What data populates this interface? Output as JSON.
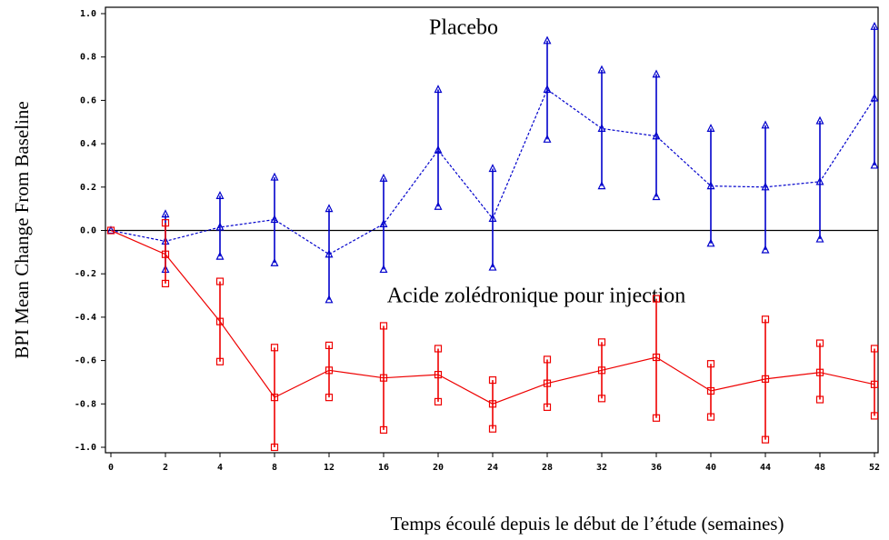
{
  "chart_data": {
    "type": "line",
    "y_label": "BPI Mean Change From Baseline",
    "x_label": "Temps écoulé depuis le début de l’étude (semaines)",
    "annotations": [
      "Placebo",
      "Acide zolédronique pour injection"
    ],
    "categories": [
      "0",
      "2",
      "4",
      "8",
      "12",
      "16",
      "20",
      "24",
      "28",
      "32",
      "36",
      "40",
      "44",
      "48",
      "52"
    ],
    "ylim": [
      -1,
      1
    ],
    "yticks": [
      {
        "value": 1,
        "label": "1.0"
      },
      0.8,
      0.6,
      0.4,
      0.2,
      {
        "value": 0,
        "label": "0.0"
      },
      -0.2,
      -0.4,
      -0.6,
      -0.8,
      {
        "value": -1,
        "label": "-1.0"
      }
    ],
    "reference_line": 0,
    "series": [
      {
        "name": "Placebo",
        "color": "#0000cc",
        "line_style": "dashed",
        "marker": "triangle",
        "values": [
          0,
          -0.05,
          0.015,
          0.05,
          -0.11,
          0.03,
          0.37,
          0.055,
          0.65,
          0.47,
          0.435,
          0.205,
          0.2,
          0.225,
          0.61
        ],
        "lower": [
          null,
          -0.18,
          -0.12,
          -0.15,
          -0.32,
          -0.18,
          0.11,
          -0.17,
          0.42,
          0.205,
          0.155,
          -0.06,
          -0.09,
          -0.04,
          0.3
        ],
        "upper": [
          null,
          0.075,
          0.16,
          0.245,
          0.1,
          0.24,
          0.65,
          0.285,
          0.875,
          0.74,
          0.72,
          0.47,
          0.485,
          0.505,
          0.94
        ]
      },
      {
        "name": "Acide zolédronique pour injection",
        "color": "#ee0000",
        "line_style": "solid",
        "marker": "square",
        "values": [
          0,
          -0.11,
          -0.42,
          -0.77,
          -0.645,
          -0.68,
          -0.665,
          -0.8,
          -0.705,
          -0.645,
          -0.585,
          -0.74,
          -0.685,
          -0.655,
          -0.71
        ],
        "lower": [
          null,
          -0.245,
          -0.605,
          -1,
          -0.77,
          -0.92,
          -0.79,
          -0.915,
          -0.815,
          -0.775,
          -0.865,
          -0.86,
          -0.965,
          -0.78,
          -0.855
        ],
        "upper": [
          null,
          0.035,
          -0.235,
          -0.54,
          -0.53,
          -0.44,
          -0.545,
          -0.69,
          -0.595,
          -0.515,
          -0.315,
          -0.615,
          -0.41,
          -0.52,
          -0.545
        ]
      }
    ]
  }
}
